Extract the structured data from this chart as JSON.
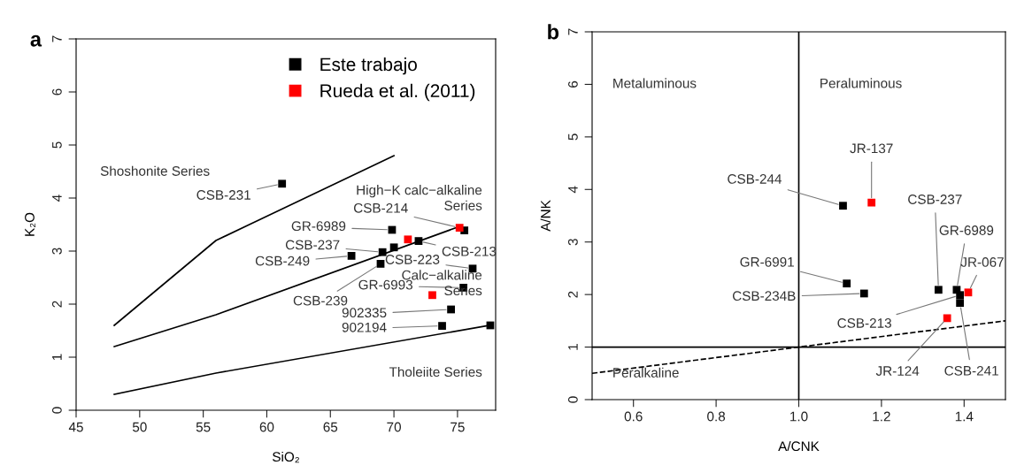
{
  "chart_data": [
    {
      "type": "scatter",
      "title": "a",
      "xlabel": "SiO₂",
      "ylabel": "K₂O",
      "xlim": [
        45,
        78
      ],
      "ylim": [
        0,
        7
      ],
      "xticks": [
        45,
        50,
        55,
        60,
        65,
        70,
        75
      ],
      "yticks": [
        0,
        1,
        2,
        3,
        4,
        5,
        6,
        7
      ],
      "legend": "top right",
      "marker": "square",
      "series": [
        {
          "name": "Este trabajo",
          "color": "#000000",
          "x": [
            61.2,
            69.85,
            75.54,
            71.94,
            69.1,
            70.0,
            66.66,
            68.95,
            76.19,
            75.47,
            74.49,
            73.79,
            77.58
          ],
          "values": [
            4.27,
            3.4,
            3.39,
            3.19,
            2.98,
            3.07,
            2.91,
            2.76,
            2.67,
            2.31,
            1.9,
            1.59,
            1.6
          ]
        },
        {
          "name": "Rueda et al. (2011)",
          "color": "#ff0000",
          "x": [
            75.16,
            71.1,
            73.02
          ],
          "values": [
            3.44,
            3.22,
            2.17
          ]
        },
        {
          "type": "line",
          "color": "#000000",
          "marker": "none",
          "x": [
            48,
            56,
            70
          ],
          "values": [
            1.6,
            3.2,
            4.8
          ]
        },
        {
          "type": "line",
          "color": "#000000",
          "marker": "none",
          "x": [
            48,
            56,
            75
          ],
          "values": [
            1.2,
            1.8,
            3.45
          ]
        },
        {
          "type": "line",
          "color": "#000000",
          "marker": "none",
          "x": [
            48,
            56,
            77.5
          ],
          "values": [
            0.3,
            0.7,
            1.6
          ]
        }
      ],
      "annotations": [
        {
          "text": "CSB-231",
          "x": 61.2,
          "y": 4.27
        },
        {
          "text": "GR-6989",
          "x": 69.85,
          "y": 3.4
        },
        {
          "text": "CSB-214",
          "x": 75.16,
          "y": 3.44
        },
        {
          "text": "CSB-213",
          "x": 71.94,
          "y": 3.19
        },
        {
          "text": "CSB-237",
          "x": 69.1,
          "y": 2.98
        },
        {
          "text": "CSB-249",
          "x": 66.66,
          "y": 2.91
        },
        {
          "text": "CSB-239",
          "x": 68.95,
          "y": 2.76
        },
        {
          "text": "CSB-223",
          "x": 76.19,
          "y": 2.67
        },
        {
          "text": "GR-6993",
          "x": 75.47,
          "y": 2.31
        },
        {
          "text": "902335",
          "x": 74.49,
          "y": 1.9
        },
        {
          "text": "902194",
          "x": 73.79,
          "y": 1.59
        },
        "Shoshonite Series",
        "High−K calc−alkaline\nSeries",
        "Calc−alkaline\nSeries",
        "Tholeiite Series"
      ]
    },
    {
      "type": "scatter",
      "title": "b",
      "xlabel": "A/CNK",
      "ylabel": "A/NK",
      "xlim": [
        0.5,
        1.5
      ],
      "ylim": [
        0,
        7
      ],
      "xticks": [
        0.6,
        0.8,
        {
          "value": 1.0,
          "label": "1.0"
        },
        1.2,
        1.4
      ],
      "yticks": [
        0,
        1,
        2,
        3,
        4,
        5,
        6,
        7
      ],
      "marker": "square",
      "series": [
        {
          "color": "#000000",
          "x": [
            1.107,
            1.116,
            1.158,
            1.338,
            1.382,
            1.39,
            1.39
          ],
          "values": [
            3.69,
            2.21,
            2.02,
            2.09,
            2.09,
            1.99,
            1.84
          ]
        },
        {
          "color": "#ff0000",
          "x": [
            1.176,
            1.41,
            1.359
          ],
          "values": [
            3.75,
            2.04,
            1.55
          ]
        },
        {
          "type": "line",
          "color": "#000000",
          "marker": "none",
          "line_style": "dashed",
          "x": [
            0.5,
            1.5
          ],
          "values": [
            0.5,
            1.5
          ]
        },
        {
          "type": "line",
          "color": "#000000",
          "marker": "none",
          "x": [
            1,
            1
          ],
          "values": [
            0,
            7
          ]
        },
        {
          "type": "line",
          "color": "#000000",
          "marker": "none",
          "x": [
            0.5,
            1.5
          ],
          "values": [
            1,
            1
          ]
        }
      ],
      "annotations": [
        {
          "text": "CSB-244",
          "x": 1.107,
          "y": 3.69
        },
        {
          "text": "JR-137",
          "x": 1.176,
          "y": 3.75
        },
        {
          "text": "GR-6991",
          "x": 1.116,
          "y": 2.21
        },
        {
          "text": "CSB-234B",
          "x": 1.158,
          "y": 2.02
        },
        {
          "text": "CSB-237",
          "x": 1.338,
          "y": 2.09
        },
        {
          "text": "GR-6989",
          "x": 1.382,
          "y": 2.09
        },
        {
          "text": "JR-067",
          "x": 1.41,
          "y": 2.04
        },
        {
          "text": "CSB-213",
          "x": 1.39,
          "y": 1.99
        },
        {
          "text": "JR-124",
          "x": 1.359,
          "y": 1.55
        },
        {
          "text": "CSB-241",
          "x": 1.39,
          "y": 1.84
        },
        "Metaluminous",
        "Peraluminous",
        "Peralkaline"
      ]
    }
  ]
}
